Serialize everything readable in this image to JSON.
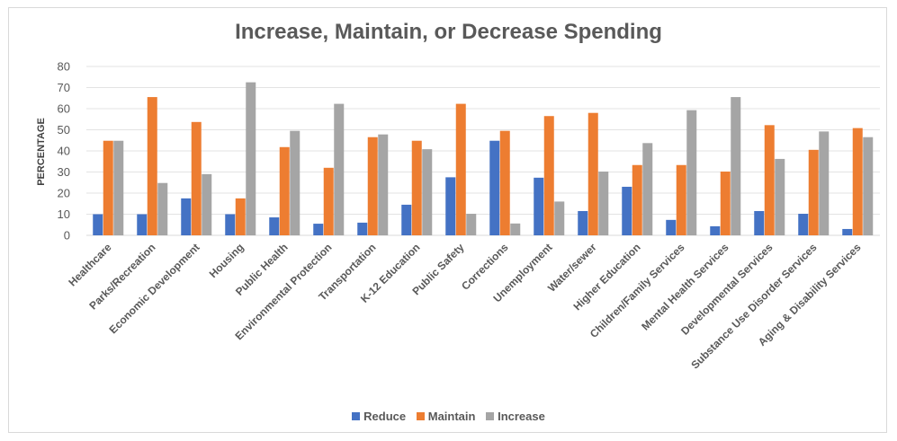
{
  "chart_data": {
    "type": "bar",
    "title": "Increase, Maintain, or Decrease Spending",
    "ylabel": "PERCENTAGE",
    "xlabel": "",
    "ylim": [
      0,
      80
    ],
    "yticks": [
      0,
      10,
      20,
      30,
      40,
      50,
      60,
      70,
      80
    ],
    "grid": true,
    "legend_position": "bottom",
    "categories": [
      "Healthcare",
      "Parks/Recreation",
      "Economic Development",
      "Housing",
      "Public Health",
      "Environmental Protection",
      "Transportation",
      "K-12 Education",
      "Public Safety",
      "Corrections",
      "Unemployment",
      "Water/sewer",
      "Higher Education",
      "Children/Family Services",
      "Mental Health Services",
      "Developmental Services",
      "Substance Use Disorder Services",
      "Aging & Disability Services"
    ],
    "series": [
      {
        "name": "Reduce",
        "color": "#4472c4",
        "values": [
          10,
          10,
          17.5,
          10,
          8.5,
          5.5,
          6,
          14.5,
          27.5,
          44.8,
          27.3,
          11.5,
          23,
          7.3,
          4.3,
          11.5,
          10.2,
          3
        ]
      },
      {
        "name": "Maintain",
        "color": "#ed7d31",
        "values": [
          44.8,
          65.5,
          53.7,
          17.5,
          41.8,
          32,
          46.5,
          44.8,
          62.3,
          49.5,
          56.5,
          58,
          33.3,
          33.3,
          30.2,
          52.2,
          40.5,
          50.8
        ]
      },
      {
        "name": "Increase",
        "color": "#a5a5a5",
        "values": [
          44.8,
          24.8,
          29,
          72.5,
          49.5,
          62.3,
          47.8,
          40.8,
          10.2,
          5.6,
          16,
          30.2,
          43.7,
          59.3,
          65.5,
          36.2,
          49.2,
          46.5
        ]
      }
    ]
  }
}
